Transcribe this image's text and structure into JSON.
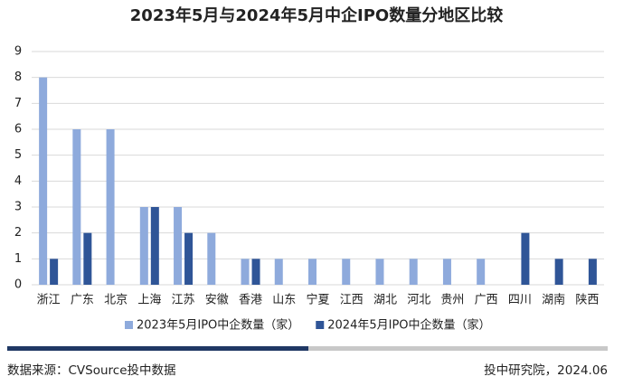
{
  "chart_data": {
    "type": "bar",
    "title": "2023年5月与2024年5月中企IPO数量分地区比较",
    "categories": [
      "浙江",
      "广东",
      "北京",
      "上海",
      "江苏",
      "安徽",
      "香港",
      "山东",
      "宁夏",
      "江西",
      "湖北",
      "河北",
      "贵州",
      "广西",
      "四川",
      "湖南",
      "陕西"
    ],
    "series": [
      {
        "name": "2023年5月IPO中企数量（家）",
        "color": "#8eaadc",
        "values": [
          8,
          6,
          6,
          3,
          3,
          2,
          1,
          1,
          1,
          1,
          1,
          1,
          1,
          1,
          0,
          0,
          0
        ]
      },
      {
        "name": "2024年5月IPO中企数量（家）",
        "color": "#2f5597",
        "values": [
          1,
          2,
          0,
          3,
          2,
          0,
          1,
          0,
          0,
          0,
          0,
          0,
          0,
          0,
          2,
          1,
          1
        ]
      }
    ],
    "ylim": [
      0,
      9
    ],
    "yticks": [
      0,
      1,
      2,
      3,
      4,
      5,
      6,
      7,
      8,
      9
    ],
    "grid": true,
    "legend": "bottom"
  },
  "footer": {
    "source": "数据来源：CVSource投中数据",
    "credit": "投中研究院，2024.06"
  }
}
